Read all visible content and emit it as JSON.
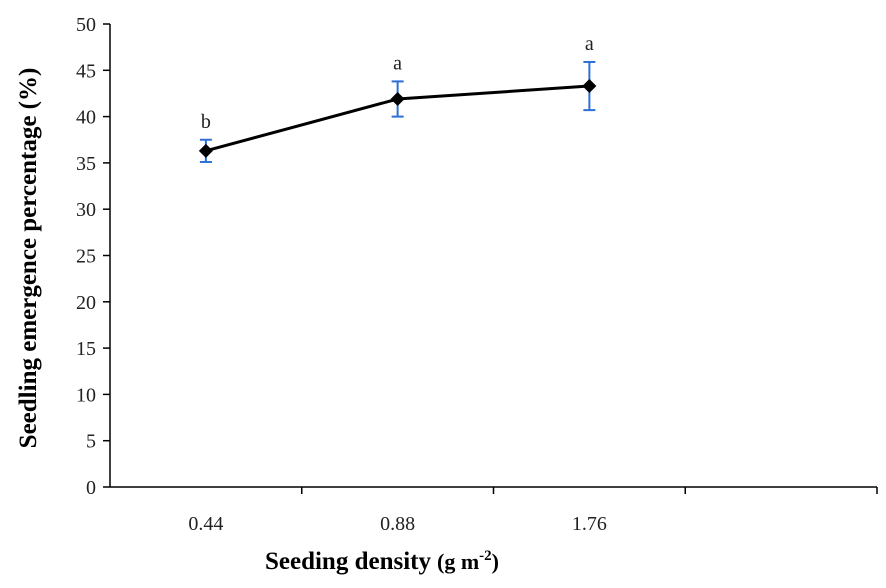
{
  "chart_data": {
    "type": "line",
    "categories": [
      "0.44",
      "0.88",
      "1.76"
    ],
    "series": [
      {
        "values": [
          36.3,
          41.9,
          43.3
        ],
        "error": [
          1.2,
          1.9,
          2.6
        ],
        "significance": [
          "b",
          "a",
          "a"
        ],
        "line_color": "#000000",
        "marker": "diamond",
        "error_bar_color": "#2e6fd4"
      }
    ],
    "xlabel": "Seeding density",
    "xlabel_unit_base": "(g m",
    "xlabel_unit_sup": "-2",
    "xlabel_unit_close": ")",
    "ylabel": "Seedling emergence percentage (%)",
    "ylim": [
      0,
      50
    ],
    "yticks": [
      "0",
      "5",
      "10",
      "15",
      "20",
      "25",
      "30",
      "35",
      "40",
      "45",
      "50"
    ],
    "x_slots": 4,
    "grid": false
  }
}
